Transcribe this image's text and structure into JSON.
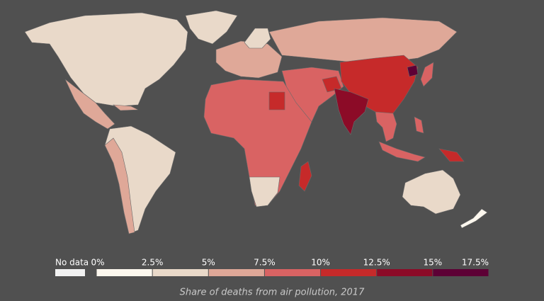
{
  "legend": {
    "no_data_label": "No data",
    "no_data_color": "#f2f2f2",
    "ticks": [
      {
        "value": 0,
        "label": "0%"
      },
      {
        "value": 2.5,
        "label": "2.5%"
      },
      {
        "value": 5,
        "label": "5%"
      },
      {
        "value": 7.5,
        "label": "7.5%"
      },
      {
        "value": 10,
        "label": "10%"
      },
      {
        "value": 12.5,
        "label": "12.5%"
      },
      {
        "value": 15,
        "label": "15%"
      },
      {
        "value": 17.5,
        "label": "17.5%"
      }
    ],
    "colors": [
      "#fcf7ee",
      "#e9d9c9",
      "#dfa898",
      "#d96363",
      "#c62a2a",
      "#8c0b27",
      "#5d0035"
    ]
  },
  "caption": "Share of deaths from air pollution, 2017"
}
